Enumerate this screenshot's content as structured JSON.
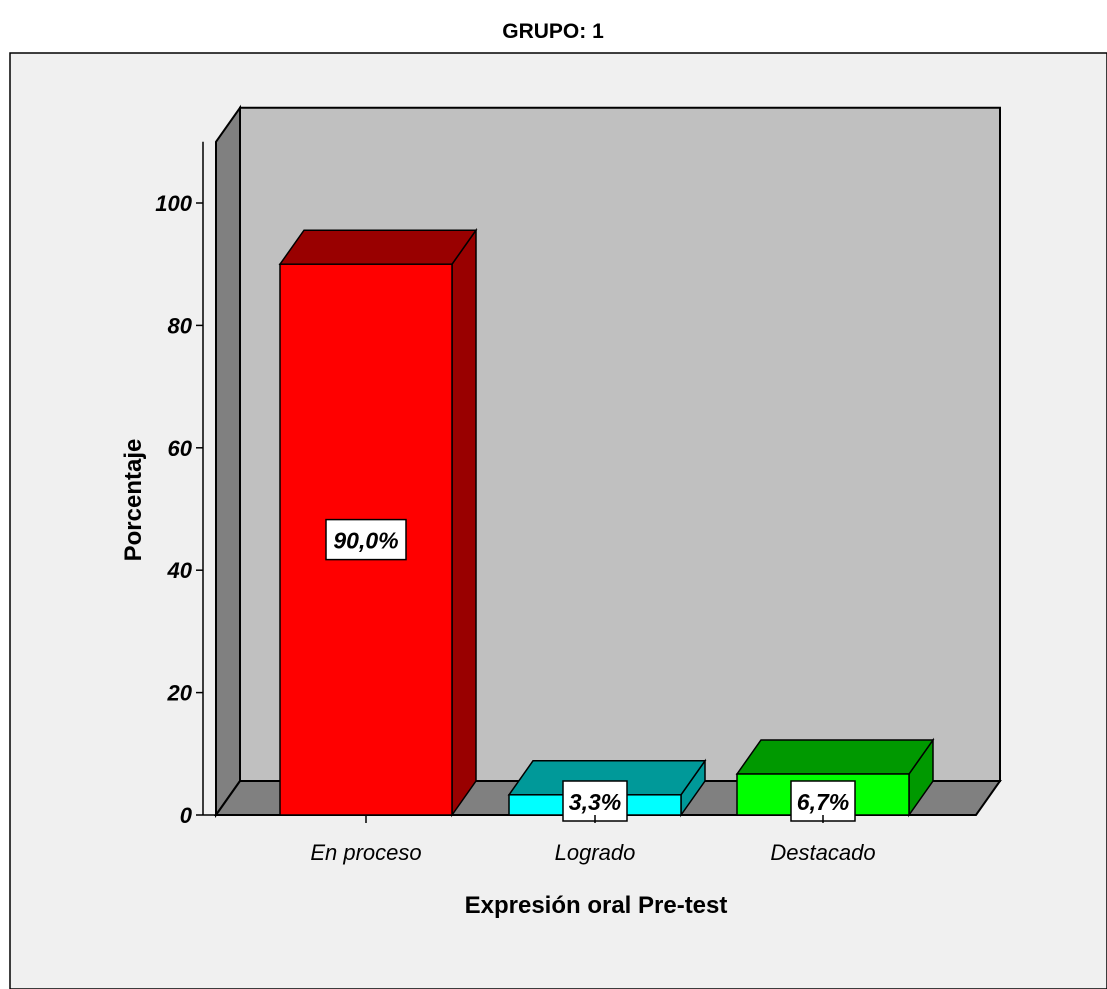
{
  "chart_data": {
    "type": "bar",
    "title": "GRUPO: 1",
    "xlabel": "Expresión oral Pre-test",
    "ylabel": "Porcentaje",
    "categories": [
      "En proceso",
      "Logrado",
      "Destacado"
    ],
    "values": [
      90.0,
      3.3,
      6.7
    ],
    "data_labels": [
      "90,0%",
      "3,3%",
      "6,7%"
    ],
    "y_ticks": [
      0,
      20,
      40,
      60,
      80,
      100
    ],
    "ylim": [
      0,
      110
    ],
    "three_d": true,
    "colors": {
      "bars_front": [
        "#ff0000",
        "#00ffff",
        "#00ff00"
      ],
      "bars_top": [
        "#990000",
        "#009999",
        "#009900"
      ],
      "bars_side": [
        "#990000",
        "#009999",
        "#009900"
      ],
      "back_wall": "#c0c0c0",
      "side_wall": "#808080",
      "floor": "#808080",
      "outer_background": "#f0f0f0"
    }
  }
}
